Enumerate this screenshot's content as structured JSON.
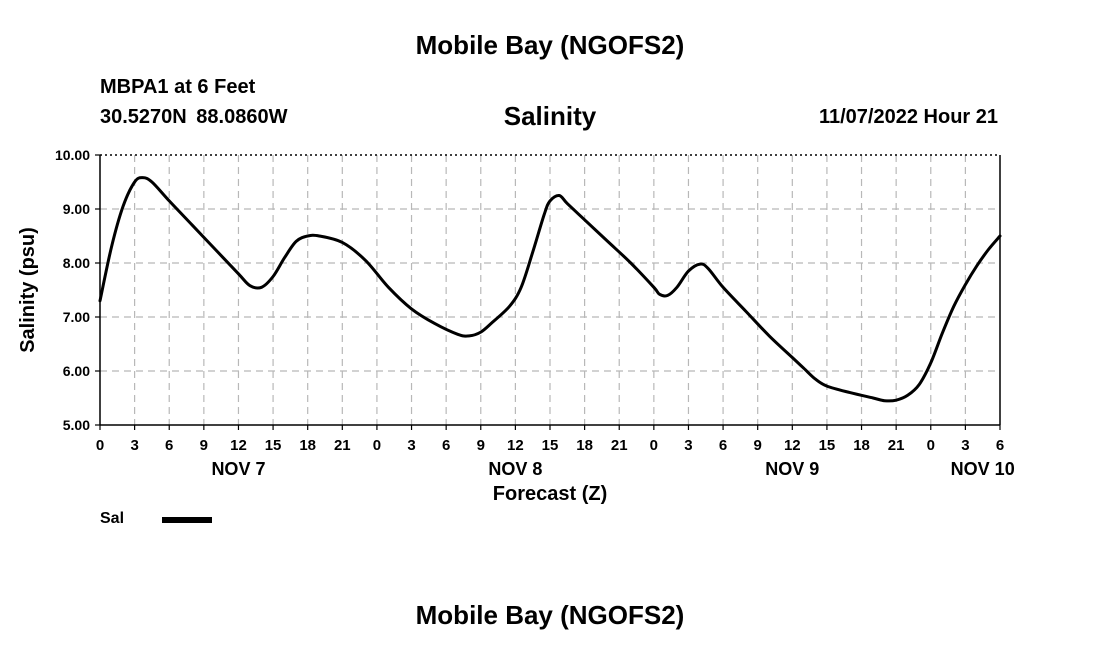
{
  "header": {
    "title": "Mobile Bay (NGOFS2)",
    "station": "MBPA1 at 6 Feet",
    "coords": "30.5270N  88.0860W",
    "timestamp": "11/07/2022 Hour 21"
  },
  "footer": {
    "title": "Mobile Bay (NGOFS2)"
  },
  "chart_data": {
    "type": "line",
    "title": "Salinity",
    "xlabel": "Forecast (Z)",
    "ylabel": "Salinity (psu)",
    "ylim": [
      5.0,
      10.0
    ],
    "xlim_hours": [
      0,
      78
    ],
    "yticks": [
      "5.00",
      "6.00",
      "7.00",
      "8.00",
      "9.00",
      "10.00"
    ],
    "xtick_labels": [
      "0",
      "3",
      "6",
      "9",
      "12",
      "15",
      "18",
      "21",
      "0",
      "3",
      "6",
      "9",
      "12",
      "15",
      "18",
      "21",
      "0",
      "3",
      "6",
      "9",
      "12",
      "15",
      "18",
      "21",
      "0",
      "3",
      "6"
    ],
    "day_labels": [
      {
        "label": "NOV 7",
        "hour": 12
      },
      {
        "label": "NOV 8",
        "hour": 36
      },
      {
        "label": "NOV 9",
        "hour": 60
      },
      {
        "label": "NOV 10",
        "hour": 76.5
      }
    ],
    "grid": true,
    "legend": "bottom-left",
    "series": [
      {
        "name": "Sal",
        "color": "#000000",
        "points": [
          [
            0,
            7.3
          ],
          [
            1,
            8.3
          ],
          [
            2,
            9.05
          ],
          [
            3,
            9.5
          ],
          [
            3.7,
            9.58
          ],
          [
            4.5,
            9.5
          ],
          [
            6,
            9.15
          ],
          [
            8,
            8.7
          ],
          [
            10,
            8.25
          ],
          [
            12,
            7.8
          ],
          [
            13,
            7.58
          ],
          [
            14,
            7.55
          ],
          [
            15,
            7.75
          ],
          [
            16,
            8.1
          ],
          [
            17,
            8.4
          ],
          [
            18,
            8.5
          ],
          [
            19,
            8.5
          ],
          [
            21,
            8.38
          ],
          [
            23,
            8.05
          ],
          [
            25,
            7.55
          ],
          [
            27,
            7.15
          ],
          [
            29,
            6.88
          ],
          [
            31,
            6.68
          ],
          [
            32,
            6.65
          ],
          [
            33,
            6.72
          ],
          [
            34,
            6.9
          ],
          [
            35.5,
            7.2
          ],
          [
            36.5,
            7.55
          ],
          [
            37.5,
            8.2
          ],
          [
            38.5,
            8.9
          ],
          [
            39,
            9.15
          ],
          [
            39.8,
            9.25
          ],
          [
            40.5,
            9.1
          ],
          [
            42,
            8.8
          ],
          [
            44,
            8.4
          ],
          [
            46,
            8.0
          ],
          [
            48,
            7.55
          ],
          [
            48.5,
            7.42
          ],
          [
            49.2,
            7.4
          ],
          [
            50,
            7.55
          ],
          [
            51,
            7.85
          ],
          [
            52,
            7.98
          ],
          [
            52.7,
            7.9
          ],
          [
            54,
            7.55
          ],
          [
            56,
            7.1
          ],
          [
            58,
            6.65
          ],
          [
            60,
            6.25
          ],
          [
            61,
            6.05
          ],
          [
            62,
            5.85
          ],
          [
            63,
            5.72
          ],
          [
            65,
            5.6
          ],
          [
            67,
            5.5
          ],
          [
            68,
            5.45
          ],
          [
            69,
            5.46
          ],
          [
            70,
            5.55
          ],
          [
            71,
            5.75
          ],
          [
            72,
            6.15
          ],
          [
            73,
            6.7
          ],
          [
            74,
            7.2
          ],
          [
            75,
            7.6
          ],
          [
            76,
            7.95
          ],
          [
            77,
            8.25
          ],
          [
            78,
            8.5
          ]
        ]
      }
    ]
  }
}
